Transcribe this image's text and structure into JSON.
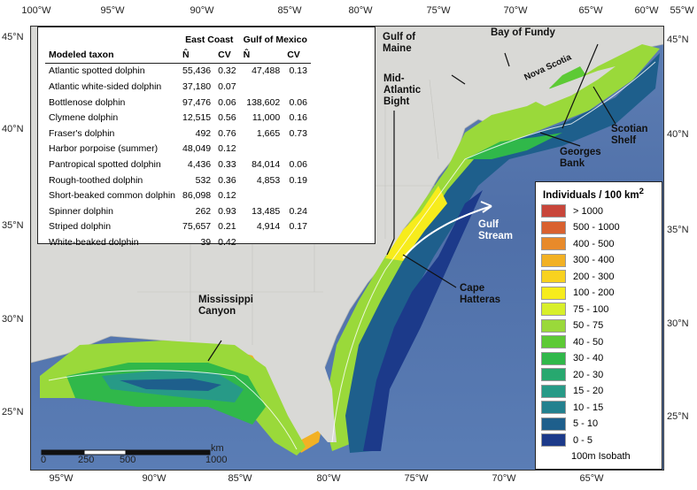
{
  "lon_ticks_top": [
    "100°W",
    "95°W",
    "90°W",
    "85°W",
    "80°W",
    "75°W",
    "70°W",
    "65°W",
    "60°W",
    "55°W"
  ],
  "lon_ticks_bottom": [
    "95°W",
    "90°W",
    "85°W",
    "80°W",
    "75°W",
    "70°W",
    "65°W"
  ],
  "lat_ticks_left": [
    "45°N",
    "40°N",
    "35°N",
    "30°N",
    "25°N"
  ],
  "lat_ticks_right": [
    "45°N",
    "40°N",
    "35°N",
    "30°N",
    "25°N"
  ],
  "table": {
    "col_headers": {
      "taxon": "Modeled taxon",
      "east": "East Coast",
      "gulf": "Gulf of Mexico",
      "n": "N̂",
      "cv": "CV"
    },
    "rows": [
      {
        "taxon": "Atlantic spotted dolphin",
        "ec_n": "55,436",
        "ec_cv": "0.32",
        "gm_n": "47,488",
        "gm_cv": "0.13"
      },
      {
        "taxon": "Atlantic white-sided dolphin",
        "ec_n": "37,180",
        "ec_cv": "0.07",
        "gm_n": "",
        "gm_cv": ""
      },
      {
        "taxon": "Bottlenose dolphin",
        "ec_n": "97,476",
        "ec_cv": "0.06",
        "gm_n": "138,602",
        "gm_cv": "0.06"
      },
      {
        "taxon": "Clymene dolphin",
        "ec_n": "12,515",
        "ec_cv": "0.56",
        "gm_n": "11,000",
        "gm_cv": "0.16"
      },
      {
        "taxon": "Fraser's dolphin",
        "ec_n": "492",
        "ec_cv": "0.76",
        "gm_n": "1,665",
        "gm_cv": "0.73"
      },
      {
        "taxon": "Harbor porpoise (summer)",
        "ec_n": "48,049",
        "ec_cv": "0.12",
        "gm_n": "",
        "gm_cv": ""
      },
      {
        "taxon": "Pantropical spotted dolphin",
        "ec_n": "4,436",
        "ec_cv": "0.33",
        "gm_n": "84,014",
        "gm_cv": "0.06"
      },
      {
        "taxon": "Rough-toothed dolphin",
        "ec_n": "532",
        "ec_cv": "0.36",
        "gm_n": "4,853",
        "gm_cv": "0.19"
      },
      {
        "taxon": "Short-beaked common dolphin",
        "ec_n": "86,098",
        "ec_cv": "0.12",
        "gm_n": "",
        "gm_cv": ""
      },
      {
        "taxon": "Spinner dolphin",
        "ec_n": "262",
        "ec_cv": "0.93",
        "gm_n": "13,485",
        "gm_cv": "0.24"
      },
      {
        "taxon": "Striped dolphin",
        "ec_n": "75,657",
        "ec_cv": "0.21",
        "gm_n": "4,914",
        "gm_cv": "0.17"
      },
      {
        "taxon": "White-beaked dolphin",
        "ec_n": "39",
        "ec_cv": "0.42",
        "gm_n": "",
        "gm_cv": ""
      }
    ]
  },
  "legend": {
    "title": "Individuals / 100 km",
    "title_sup": "2",
    "items": [
      {
        "label": "> 1000",
        "color": "#c8463a"
      },
      {
        "label": "500 - 1000",
        "color": "#d9612f"
      },
      {
        "label": "400 - 500",
        "color": "#e88a2a"
      },
      {
        "label": "300 - 400",
        "color": "#f2b124"
      },
      {
        "label": "200 - 300",
        "color": "#f8d21f"
      },
      {
        "label": "100 - 200",
        "color": "#f7ec1c"
      },
      {
        "label": "75 - 100",
        "color": "#d8ef2a"
      },
      {
        "label": "50 - 75",
        "color": "#9ad93a"
      },
      {
        "label": "40 - 50",
        "color": "#5dca35"
      },
      {
        "label": "30 - 40",
        "color": "#30b84a"
      },
      {
        "label": "20 - 30",
        "color": "#27a86f"
      },
      {
        "label": "15 - 20",
        "color": "#279a87"
      },
      {
        "label": "10 - 15",
        "color": "#23818f"
      },
      {
        "label": "5 - 10",
        "color": "#1e5f8c"
      },
      {
        "label": "0 - 5",
        "color": "#1c3a8a"
      }
    ],
    "isobath_label": "100m Isobath"
  },
  "places": {
    "gulf_of_maine": "Gulf of\nMaine",
    "bay_of_fundy": "Bay of Fundy",
    "nova_scotia": "Nova Scotia",
    "mid_atlantic": "Mid-\nAtlantic\nBight",
    "scotian_shelf": "Scotian\nShelf",
    "georges_bank": "Georges\nBank",
    "gulf_stream": "Gulf\nStream",
    "cape_hatteras": "Cape\nHatteras",
    "mississippi_canyon": "Mississippi\nCanyon"
  },
  "scalebar": {
    "ticks": [
      "0",
      "250",
      "500",
      "1000"
    ],
    "unit": "km"
  },
  "colors": {
    "land": "#d8d8d4",
    "ocean": "#5472ab"
  }
}
